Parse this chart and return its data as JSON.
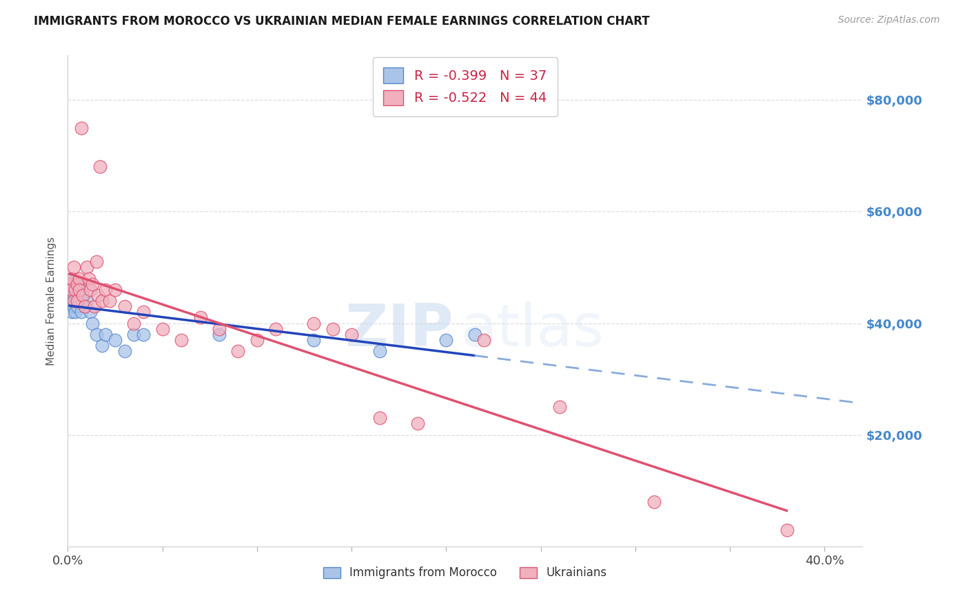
{
  "title": "IMMIGRANTS FROM MOROCCO VS UKRAINIAN MEDIAN FEMALE EARNINGS CORRELATION CHART",
  "source": "Source: ZipAtlas.com",
  "ylabel": "Median Female Earnings",
  "background_color": "#ffffff",
  "xlim": [
    0.0,
    0.42
  ],
  "ylim": [
    0,
    88000
  ],
  "yticks": [
    20000,
    40000,
    60000,
    80000
  ],
  "ytick_labels": [
    "$20,000",
    "$40,000",
    "$60,000",
    "$80,000"
  ],
  "xtick_vals": [
    0.0,
    0.4
  ],
  "xtick_labels": [
    "0.0%",
    "40.0%"
  ],
  "right_axis_color": "#4488cc",
  "grid_color": "#dddddd",
  "series": [
    {
      "name": "Immigrants from Morocco",
      "R": -0.399,
      "N": 37,
      "color_edge": "#5588cc",
      "color_fill": "#aac4e8",
      "line_color": "#2244bb",
      "dash_color": "#88aadd",
      "solid_xend": 0.215,
      "dash_xend": 0.42,
      "x": [
        0.001,
        0.001,
        0.001,
        0.002,
        0.002,
        0.002,
        0.002,
        0.002,
        0.003,
        0.003,
        0.003,
        0.003,
        0.004,
        0.004,
        0.004,
        0.005,
        0.005,
        0.006,
        0.006,
        0.007,
        0.008,
        0.009,
        0.01,
        0.012,
        0.013,
        0.015,
        0.018,
        0.02,
        0.025,
        0.03,
        0.035,
        0.04,
        0.08,
        0.13,
        0.165,
        0.2,
        0.215
      ],
      "y": [
        46000,
        44000,
        47000,
        45000,
        43000,
        42000,
        48000,
        46000,
        44000,
        47000,
        43000,
        45000,
        46000,
        42000,
        44000,
        45000,
        43000,
        47000,
        44000,
        42000,
        45000,
        43000,
        44000,
        42000,
        40000,
        38000,
        36000,
        38000,
        37000,
        35000,
        38000,
        38000,
        38000,
        37000,
        35000,
        37000,
        38000
      ]
    },
    {
      "name": "Ukrainians",
      "R": -0.522,
      "N": 44,
      "color_edge": "#e05070",
      "color_fill": "#f0b0be",
      "line_color": "#e05070",
      "solid_xend": 0.38,
      "x": [
        0.001,
        0.002,
        0.002,
        0.003,
        0.003,
        0.004,
        0.005,
        0.005,
        0.006,
        0.006,
        0.007,
        0.008,
        0.009,
        0.01,
        0.011,
        0.012,
        0.013,
        0.014,
        0.015,
        0.016,
        0.017,
        0.018,
        0.02,
        0.022,
        0.025,
        0.03,
        0.035,
        0.04,
        0.05,
        0.06,
        0.07,
        0.08,
        0.09,
        0.1,
        0.11,
        0.13,
        0.14,
        0.15,
        0.165,
        0.185,
        0.22,
        0.26,
        0.31,
        0.38
      ],
      "y": [
        47000,
        48000,
        46000,
        44000,
        50000,
        46000,
        47000,
        44000,
        48000,
        46000,
        75000,
        45000,
        43000,
        50000,
        48000,
        46000,
        47000,
        43000,
        51000,
        45000,
        68000,
        44000,
        46000,
        44000,
        46000,
        43000,
        40000,
        42000,
        39000,
        37000,
        41000,
        39000,
        35000,
        37000,
        39000,
        40000,
        39000,
        38000,
        23000,
        22000,
        37000,
        25000,
        8000,
        3000
      ]
    }
  ]
}
